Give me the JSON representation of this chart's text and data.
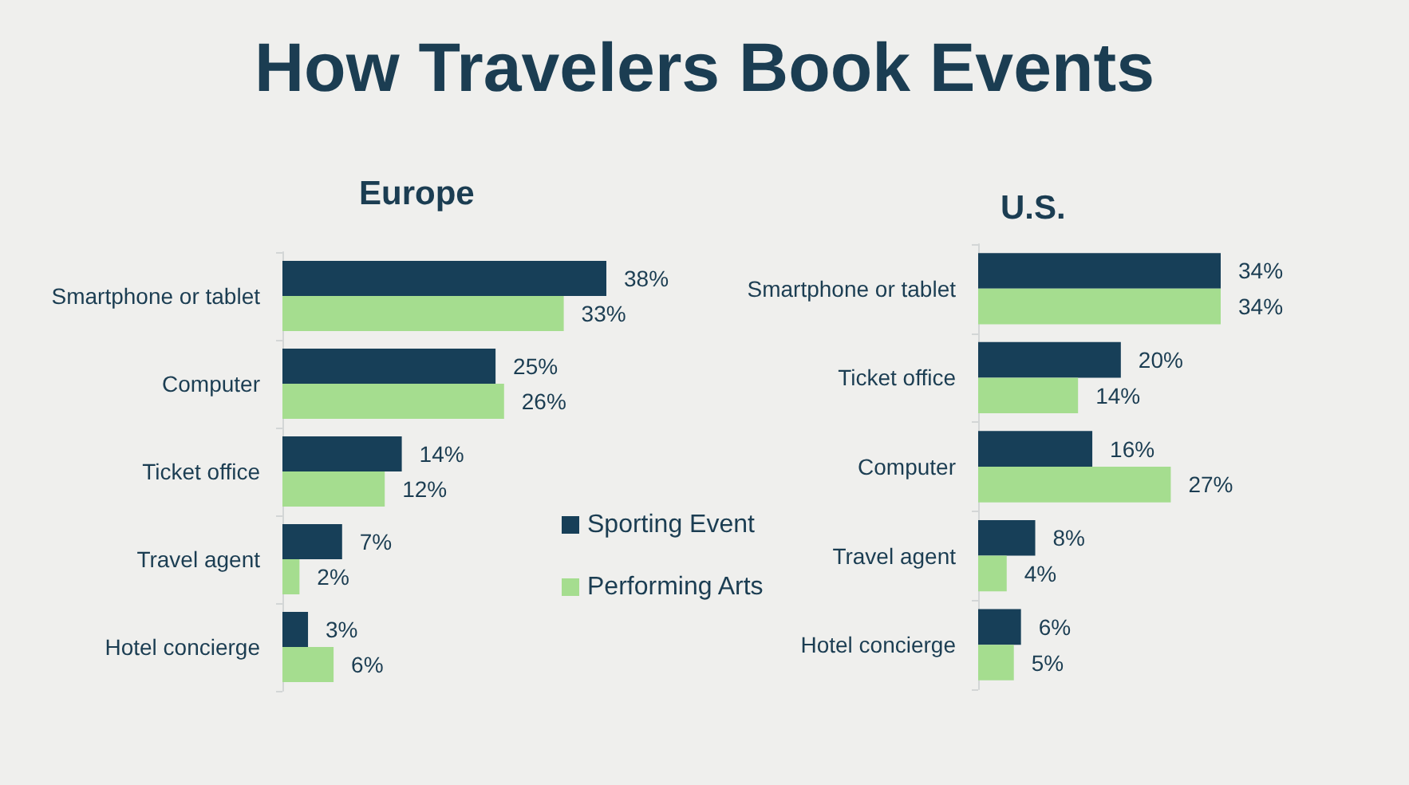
{
  "chart_data": [
    {
      "type": "other",
      "title": "How Travelers Book Events"
    },
    {
      "type": "bar",
      "title": "Europe",
      "orientation": "horizontal",
      "categories": [
        "Smartphone or tablet",
        "Computer",
        "Ticket office",
        "Travel agent",
        "Hotel concierge"
      ],
      "series": [
        {
          "name": "Sporting Event",
          "color": "#173f58",
          "values": [
            38,
            25,
            14,
            7,
            3
          ],
          "value_labels": [
            "38%",
            "25%",
            "14%",
            "7%",
            "3%"
          ]
        },
        {
          "name": "Performing Arts",
          "color": "#a5dd8f",
          "values": [
            33,
            26,
            12,
            2,
            6
          ],
          "value_labels": [
            "33%",
            "26%",
            "12%",
            "2%",
            "6%"
          ]
        }
      ],
      "tick_labels": "y",
      "legend": "right"
    },
    {
      "type": "bar",
      "title": "U.S.",
      "orientation": "horizontal",
      "categories": [
        "Smartphone or tablet",
        "Ticket office",
        "Computer",
        "Travel agent",
        "Hotel concierge"
      ],
      "series": [
        {
          "color": "#173f58",
          "values": [
            34,
            20,
            16,
            8,
            6
          ],
          "value_labels": [
            "34%",
            "20%",
            "16%",
            "8%",
            "6%"
          ]
        },
        {
          "color": "#a5dd8f",
          "values": [
            34,
            14,
            27,
            4,
            5
          ],
          "value_labels": [
            "34%",
            "14%",
            "27%",
            "4%",
            "5%"
          ]
        }
      ],
      "tick_labels": "y"
    }
  ]
}
